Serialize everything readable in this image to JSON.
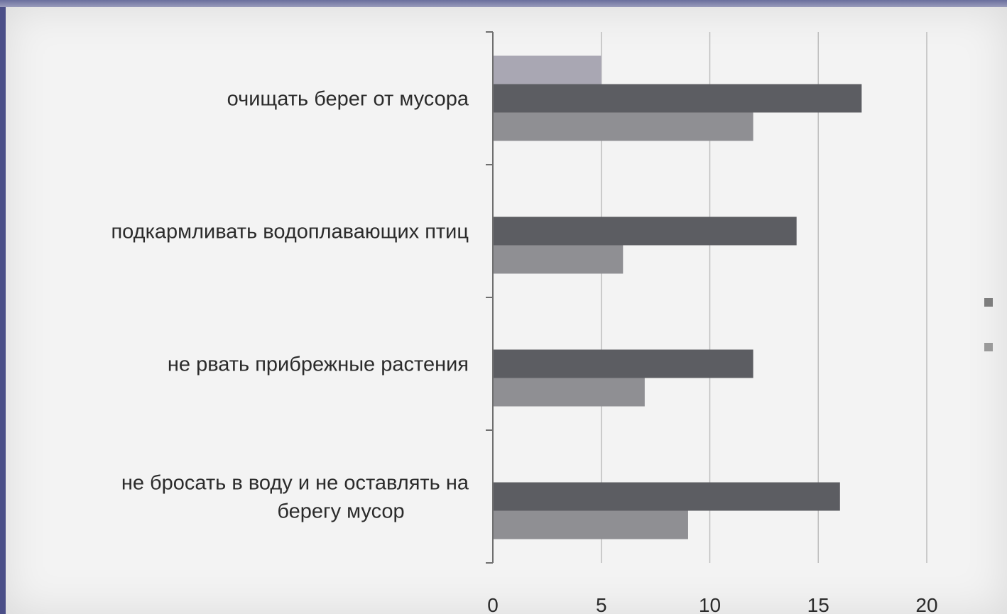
{
  "chart_data": {
    "type": "bar",
    "orientation": "horizontal",
    "categories": [
      [
        "очищать берег от мусора"
      ],
      [
        "подкармливать водоплавающих птиц"
      ],
      [
        "не рвать прибрежные растения"
      ],
      [
        "не бросать в воду и не оставлять на",
        "берегу мусор"
      ]
    ],
    "series": [
      {
        "values": [
          5,
          0,
          0,
          0
        ],
        "color": "#a9a7b3"
      },
      {
        "values": [
          17,
          14,
          12,
          16
        ],
        "color": "#5c5d62"
      },
      {
        "values": [
          12,
          6,
          7,
          9
        ],
        "color": "#8f8f93"
      }
    ],
    "xlim": [
      0,
      20
    ],
    "xticks": [
      "0",
      "5",
      "10",
      "15",
      "20"
    ],
    "grid": true,
    "legend_placement": "right"
  }
}
